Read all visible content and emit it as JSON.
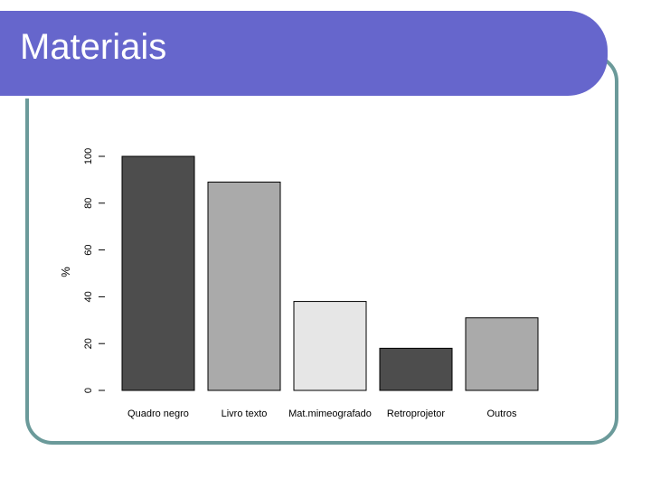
{
  "slide": {
    "title": "Materiais"
  },
  "colors": {
    "banner": "#6666cc",
    "frame": "#6b9a9a"
  },
  "chart_data": {
    "type": "bar",
    "title": "",
    "xlabel": "",
    "ylabel": "%",
    "ylim": [
      0,
      100
    ],
    "yticks": [
      "0",
      "20",
      "40",
      "60",
      "80",
      "100"
    ],
    "categories": [
      "Quadro negro",
      "Livro texto",
      "Mat.mimeografado",
      "Retroprojetor",
      "Outros"
    ],
    "values": [
      100,
      89,
      38,
      18,
      31
    ],
    "bar_colors": [
      "#4d4d4d",
      "#aaaaaa",
      "#e6e6e6",
      "#4d4d4d",
      "#aaaaaa"
    ],
    "grid": false
  }
}
